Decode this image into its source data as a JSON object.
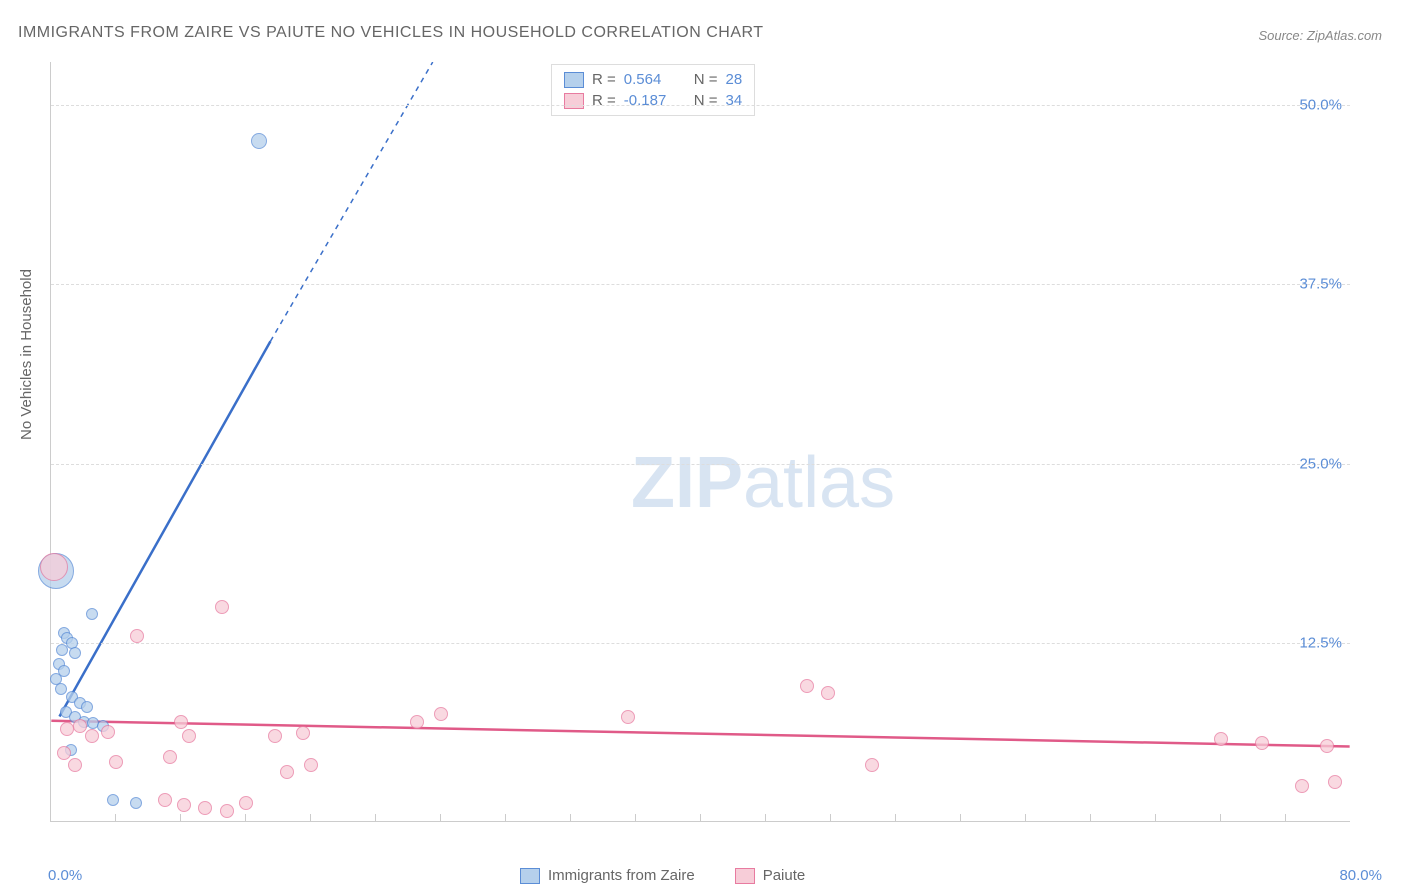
{
  "title": "IMMIGRANTS FROM ZAIRE VS PAIUTE NO VEHICLES IN HOUSEHOLD CORRELATION CHART",
  "source": "Source: ZipAtlas.com",
  "ylabel": "No Vehicles in Household",
  "watermark_bold": "ZIP",
  "watermark_light": "atlas",
  "chart": {
    "type": "scatter",
    "xlim": [
      0,
      80
    ],
    "ylim": [
      0,
      53
    ],
    "xtick_left": "0.0%",
    "xtick_right": "80.0%",
    "xtick_marks": [
      4,
      8,
      12,
      16,
      20,
      24,
      28,
      32,
      36,
      40,
      44,
      48,
      52,
      56,
      60,
      64,
      68,
      72,
      76
    ],
    "yticks": [
      {
        "v": 12.5,
        "label": "12.5%"
      },
      {
        "v": 25.0,
        "label": "25.0%"
      },
      {
        "v": 37.5,
        "label": "37.5%"
      },
      {
        "v": 50.0,
        "label": "50.0%"
      }
    ],
    "grid_color": "#dddddd",
    "background_color": "#ffffff",
    "series": [
      {
        "name": "Immigrants from Zaire",
        "fill": "#b5d0ec",
        "stroke": "#5b8dd6",
        "line_color": "#3a6fc9",
        "r_value": "0.564",
        "n_value": "28",
        "trend": {
          "x1": 0.5,
          "y1": 7.3,
          "x2": 13.5,
          "y2": 33.5,
          "dash_x2": 23.5,
          "dash_y2": 53
        },
        "points": [
          {
            "x": 0.3,
            "y": 17.5,
            "r": 18
          },
          {
            "x": 12.8,
            "y": 47.5,
            "r": 8
          },
          {
            "x": 0.8,
            "y": 13.2,
            "r": 6
          },
          {
            "x": 1.0,
            "y": 12.8,
            "r": 6
          },
          {
            "x": 1.3,
            "y": 12.5,
            "r": 6
          },
          {
            "x": 0.7,
            "y": 12.0,
            "r": 6
          },
          {
            "x": 1.5,
            "y": 11.8,
            "r": 6
          },
          {
            "x": 2.5,
            "y": 14.5,
            "r": 6
          },
          {
            "x": 0.5,
            "y": 11.0,
            "r": 6
          },
          {
            "x": 0.8,
            "y": 10.5,
            "r": 6
          },
          {
            "x": 0.3,
            "y": 10.0,
            "r": 6
          },
          {
            "x": 0.6,
            "y": 9.3,
            "r": 6
          },
          {
            "x": 1.3,
            "y": 8.7,
            "r": 6
          },
          {
            "x": 1.8,
            "y": 8.3,
            "r": 6
          },
          {
            "x": 2.2,
            "y": 8.0,
            "r": 6
          },
          {
            "x": 0.9,
            "y": 7.7,
            "r": 6
          },
          {
            "x": 1.5,
            "y": 7.3,
            "r": 6
          },
          {
            "x": 2.0,
            "y": 7.0,
            "r": 6
          },
          {
            "x": 2.6,
            "y": 6.9,
            "r": 6
          },
          {
            "x": 3.2,
            "y": 6.7,
            "r": 6
          },
          {
            "x": 1.2,
            "y": 5.0,
            "r": 6
          },
          {
            "x": 3.8,
            "y": 1.5,
            "r": 6
          },
          {
            "x": 5.2,
            "y": 1.3,
            "r": 6
          }
        ]
      },
      {
        "name": "Paiute",
        "fill": "#f7cdd8",
        "stroke": "#e87ba0",
        "line_color": "#e05a88",
        "r_value": "-0.187",
        "n_value": "34",
        "trend": {
          "x1": 0,
          "y1": 7.0,
          "x2": 80,
          "y2": 5.2
        },
        "points": [
          {
            "x": 0.2,
            "y": 17.8,
            "r": 14
          },
          {
            "x": 10.5,
            "y": 15.0,
            "r": 7
          },
          {
            "x": 5.3,
            "y": 13.0,
            "r": 7
          },
          {
            "x": 46.5,
            "y": 9.5,
            "r": 7
          },
          {
            "x": 47.8,
            "y": 9.0,
            "r": 7
          },
          {
            "x": 50.5,
            "y": 4.0,
            "r": 7
          },
          {
            "x": 35.5,
            "y": 7.3,
            "r": 7
          },
          {
            "x": 24.0,
            "y": 7.5,
            "r": 7
          },
          {
            "x": 22.5,
            "y": 7.0,
            "r": 7
          },
          {
            "x": 13.8,
            "y": 6.0,
            "r": 7
          },
          {
            "x": 15.5,
            "y": 6.2,
            "r": 7
          },
          {
            "x": 16.0,
            "y": 4.0,
            "r": 7
          },
          {
            "x": 14.5,
            "y": 3.5,
            "r": 7
          },
          {
            "x": 8.0,
            "y": 7.0,
            "r": 7
          },
          {
            "x": 8.5,
            "y": 6.0,
            "r": 7
          },
          {
            "x": 7.3,
            "y": 4.5,
            "r": 7
          },
          {
            "x": 1.0,
            "y": 6.5,
            "r": 7
          },
          {
            "x": 1.8,
            "y": 6.7,
            "r": 7
          },
          {
            "x": 2.5,
            "y": 6.0,
            "r": 7
          },
          {
            "x": 3.5,
            "y": 6.3,
            "r": 7
          },
          {
            "x": 0.8,
            "y": 4.8,
            "r": 7
          },
          {
            "x": 1.5,
            "y": 4.0,
            "r": 7
          },
          {
            "x": 4.0,
            "y": 4.2,
            "r": 7
          },
          {
            "x": 7.0,
            "y": 1.5,
            "r": 7
          },
          {
            "x": 8.2,
            "y": 1.2,
            "r": 7
          },
          {
            "x": 9.5,
            "y": 1.0,
            "r": 7
          },
          {
            "x": 10.8,
            "y": 0.8,
            "r": 7
          },
          {
            "x": 12.0,
            "y": 1.3,
            "r": 7
          },
          {
            "x": 72.0,
            "y": 5.8,
            "r": 7
          },
          {
            "x": 74.5,
            "y": 5.5,
            "r": 7
          },
          {
            "x": 77.0,
            "y": 2.5,
            "r": 7
          },
          {
            "x": 79.0,
            "y": 2.8,
            "r": 7
          },
          {
            "x": 78.5,
            "y": 5.3,
            "r": 7
          }
        ]
      }
    ]
  }
}
